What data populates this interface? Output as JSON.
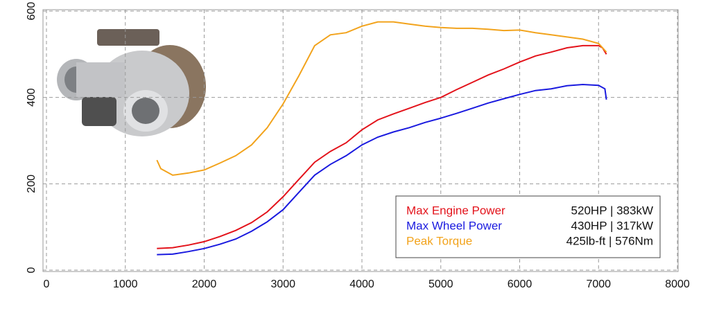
{
  "chart_data": {
    "type": "line",
    "xlim": [
      0,
      8000
    ],
    "xticks": [
      0,
      1000,
      2000,
      3000,
      4000,
      5000,
      6000,
      7000,
      8000
    ],
    "ylim": [
      0,
      600
    ],
    "yticks": [
      0,
      200,
      400,
      600
    ],
    "grid": true,
    "series": [
      {
        "name": "Max Engine Power",
        "peak_label": "520HP | 383kW",
        "color": "#e3131b",
        "x": [
          1400,
          1600,
          1800,
          2000,
          2200,
          2400,
          2600,
          2800,
          3000,
          3200,
          3400,
          3600,
          3800,
          4000,
          4200,
          4400,
          4600,
          4800,
          5000,
          5200,
          5400,
          5600,
          5800,
          6000,
          6200,
          6400,
          6600,
          6800,
          7000,
          7050,
          7100
        ],
        "values": [
          50,
          52,
          58,
          66,
          78,
          92,
          110,
          135,
          170,
          210,
          250,
          275,
          295,
          325,
          348,
          362,
          375,
          388,
          400,
          418,
          435,
          452,
          466,
          482,
          496,
          505,
          515,
          520,
          520,
          515,
          500
        ]
      },
      {
        "name": "Max Wheel Power",
        "peak_label": "430HP | 317kW",
        "color": "#1a1adf",
        "x": [
          1400,
          1600,
          1800,
          2000,
          2200,
          2400,
          2600,
          2800,
          3000,
          3200,
          3400,
          3600,
          3800,
          4000,
          4200,
          4400,
          4600,
          4800,
          5000,
          5200,
          5400,
          5600,
          5800,
          6000,
          6200,
          6400,
          6600,
          6800,
          7000,
          7080,
          7100
        ],
        "values": [
          36,
          37,
          43,
          50,
          60,
          72,
          90,
          112,
          140,
          180,
          220,
          245,
          265,
          290,
          308,
          320,
          330,
          342,
          352,
          363,
          375,
          387,
          397,
          407,
          416,
          420,
          427,
          430,
          428,
          420,
          395
        ]
      },
      {
        "name": "Peak Torque",
        "peak_label": "425lb-ft | 576Nm",
        "color": "#f2a31c",
        "x": [
          1400,
          1450,
          1600,
          1800,
          2000,
          2200,
          2400,
          2600,
          2800,
          3000,
          3200,
          3400,
          3600,
          3800,
          4000,
          4200,
          4400,
          4600,
          4800,
          5000,
          5200,
          5400,
          5600,
          5800,
          6000,
          6200,
          6400,
          6600,
          6800,
          7000,
          7100
        ],
        "values": [
          255,
          235,
          220,
          225,
          232,
          248,
          265,
          290,
          330,
          385,
          450,
          520,
          545,
          550,
          565,
          575,
          575,
          570,
          565,
          562,
          560,
          560,
          558,
          555,
          556,
          550,
          545,
          540,
          535,
          525,
          505
        ]
      }
    ]
  }
}
